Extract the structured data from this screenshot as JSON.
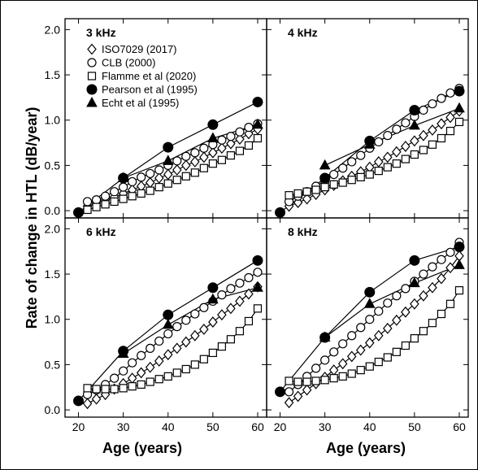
{
  "figure": {
    "ylabel": "Rate of change in HTL (dB/year)",
    "xlabel": "Age (years)"
  },
  "chart_data": [
    {
      "type": "line",
      "title": "3 kHz",
      "xlim": [
        17,
        62
      ],
      "ylim": [
        -0.08,
        2.12
      ],
      "xticks": [
        "20",
        "30",
        "40",
        "50",
        "60"
      ],
      "yticks": [
        "0.0",
        "0.5",
        "1.0",
        "1.5",
        "2.0"
      ],
      "legend": "top-left",
      "series": [
        {
          "name": "ISO7029 (2017)",
          "marker": "diamond",
          "x": [
            22,
            24,
            26,
            28,
            30,
            32,
            34,
            36,
            38,
            40,
            42,
            44,
            46,
            48,
            50,
            52,
            54,
            56,
            58,
            60
          ],
          "y": [
            0.05,
            0.08,
            0.12,
            0.15,
            0.19,
            0.23,
            0.27,
            0.31,
            0.36,
            0.4,
            0.45,
            0.5,
            0.54,
            0.59,
            0.64,
            0.69,
            0.74,
            0.79,
            0.85,
            0.9
          ]
        },
        {
          "name": "CLB (2000)",
          "marker": "circle",
          "x": [
            22,
            24,
            26,
            28,
            30,
            32,
            34,
            36,
            38,
            40,
            42,
            44,
            46,
            48,
            50,
            52,
            54,
            56,
            58,
            60
          ],
          "y": [
            0.1,
            0.12,
            0.16,
            0.21,
            0.26,
            0.32,
            0.37,
            0.41,
            0.45,
            0.5,
            0.55,
            0.6,
            0.64,
            0.69,
            0.73,
            0.78,
            0.82,
            0.87,
            0.92,
            0.96
          ]
        },
        {
          "name": "Flamme et al (2020)",
          "marker": "square",
          "x": [
            22,
            24,
            26,
            28,
            30,
            32,
            34,
            36,
            38,
            40,
            42,
            44,
            46,
            48,
            50,
            52,
            54,
            56,
            58,
            60
          ],
          "y": [
            0.01,
            0.04,
            0.07,
            0.1,
            0.13,
            0.16,
            0.19,
            0.22,
            0.26,
            0.3,
            0.34,
            0.38,
            0.42,
            0.47,
            0.52,
            0.56,
            0.61,
            0.66,
            0.72,
            0.8
          ]
        },
        {
          "name": "Pearson et al (1995)",
          "marker": "filled-circle",
          "x": [
            20,
            30,
            40,
            50,
            60
          ],
          "y": [
            -0.02,
            0.36,
            0.7,
            0.95,
            1.2
          ]
        },
        {
          "name": "Echt et al (1995)",
          "marker": "filled-triangle",
          "x": [
            30,
            40,
            50,
            60
          ],
          "y": [
            0.36,
            0.55,
            0.8,
            0.95
          ]
        }
      ]
    },
    {
      "type": "line",
      "title": "4 kHz",
      "xlim": [
        17,
        62
      ],
      "ylim": [
        -0.08,
        2.12
      ],
      "series": [
        {
          "name": "ISO7029 (2017)",
          "marker": "diamond",
          "x": [
            22,
            24,
            26,
            28,
            30,
            32,
            34,
            36,
            38,
            40,
            42,
            44,
            46,
            48,
            50,
            52,
            54,
            56,
            58,
            60
          ],
          "y": [
            0.05,
            0.09,
            0.13,
            0.18,
            0.23,
            0.28,
            0.33,
            0.38,
            0.43,
            0.48,
            0.54,
            0.59,
            0.65,
            0.71,
            0.77,
            0.83,
            0.89,
            0.96,
            1.03,
            1.1
          ]
        },
        {
          "name": "CLB (2000)",
          "marker": "circle",
          "x": [
            22,
            24,
            26,
            28,
            30,
            32,
            34,
            36,
            38,
            40,
            42,
            44,
            46,
            48,
            50,
            52,
            54,
            56,
            58,
            60
          ],
          "y": [
            0.1,
            0.16,
            0.21,
            0.27,
            0.33,
            0.4,
            0.47,
            0.54,
            0.61,
            0.69,
            0.76,
            0.83,
            0.9,
            0.97,
            1.04,
            1.11,
            1.18,
            1.24,
            1.3,
            1.35
          ]
        },
        {
          "name": "Flamme et al (2020)",
          "marker": "square",
          "x": [
            22,
            24,
            26,
            28,
            30,
            32,
            34,
            36,
            38,
            40,
            42,
            44,
            46,
            48,
            50,
            52,
            54,
            56,
            58,
            60
          ],
          "y": [
            0.17,
            0.19,
            0.21,
            0.23,
            0.26,
            0.29,
            0.31,
            0.34,
            0.37,
            0.4,
            0.44,
            0.48,
            0.52,
            0.57,
            0.62,
            0.67,
            0.73,
            0.8,
            0.88,
            0.98
          ]
        },
        {
          "name": "Pearson et al (1995)",
          "marker": "filled-circle",
          "x": [
            20,
            30,
            40,
            50,
            60
          ],
          "y": [
            -0.02,
            0.36,
            0.77,
            1.11,
            1.32
          ]
        },
        {
          "name": "Echt et al (1995)",
          "marker": "filled-triangle",
          "x": [
            30,
            40,
            50,
            60
          ],
          "y": [
            0.5,
            0.73,
            0.94,
            1.13
          ]
        }
      ]
    },
    {
      "type": "line",
      "title": "6 kHz",
      "xlim": [
        17,
        62
      ],
      "ylim": [
        -0.08,
        2.12
      ],
      "series": [
        {
          "name": "ISO7029 (2017)",
          "marker": "diamond",
          "x": [
            22,
            24,
            26,
            28,
            30,
            32,
            34,
            36,
            38,
            40,
            42,
            44,
            46,
            48,
            50,
            52,
            54,
            56,
            58,
            60
          ],
          "y": [
            0.07,
            0.12,
            0.17,
            0.23,
            0.29,
            0.35,
            0.41,
            0.47,
            0.54,
            0.61,
            0.68,
            0.75,
            0.82,
            0.89,
            0.97,
            1.05,
            1.12,
            1.2,
            1.28,
            1.36
          ]
        },
        {
          "name": "CLB (2000)",
          "marker": "circle",
          "x": [
            22,
            24,
            26,
            28,
            30,
            32,
            34,
            36,
            38,
            40,
            42,
            44,
            46,
            48,
            50,
            52,
            54,
            56,
            58,
            60
          ],
          "y": [
            0.17,
            0.22,
            0.28,
            0.35,
            0.43,
            0.52,
            0.6,
            0.68,
            0.76,
            0.84,
            0.92,
            0.99,
            1.06,
            1.13,
            1.2,
            1.27,
            1.34,
            1.4,
            1.46,
            1.52
          ]
        },
        {
          "name": "Flamme et al (2020)",
          "marker": "square",
          "x": [
            22,
            24,
            26,
            28,
            30,
            32,
            34,
            36,
            38,
            40,
            42,
            44,
            46,
            48,
            50,
            52,
            54,
            56,
            58,
            60
          ],
          "y": [
            0.24,
            0.23,
            0.23,
            0.23,
            0.24,
            0.26,
            0.28,
            0.31,
            0.34,
            0.37,
            0.41,
            0.45,
            0.5,
            0.56,
            0.63,
            0.7,
            0.78,
            0.87,
            0.98,
            1.12
          ]
        },
        {
          "name": "Pearson et al (1995)",
          "marker": "filled-circle",
          "x": [
            20,
            30,
            40,
            50,
            60
          ],
          "y": [
            0.1,
            0.65,
            1.05,
            1.35,
            1.65
          ]
        },
        {
          "name": "Echt et al (1995)",
          "marker": "filled-triangle",
          "x": [
            30,
            40,
            50,
            60
          ],
          "y": [
            0.62,
            0.94,
            1.22,
            1.35
          ]
        }
      ]
    },
    {
      "type": "line",
      "title": "8 kHz",
      "xlim": [
        17,
        62
      ],
      "ylim": [
        -0.08,
        2.12
      ],
      "series": [
        {
          "name": "ISO7029 (2017)",
          "marker": "diamond",
          "x": [
            22,
            24,
            26,
            28,
            30,
            32,
            34,
            36,
            38,
            40,
            42,
            44,
            46,
            48,
            50,
            52,
            54,
            56,
            58,
            60
          ],
          "y": [
            0.08,
            0.15,
            0.22,
            0.29,
            0.36,
            0.44,
            0.51,
            0.59,
            0.66,
            0.74,
            0.82,
            0.9,
            0.99,
            1.08,
            1.17,
            1.26,
            1.35,
            1.45,
            1.57,
            1.7
          ]
        },
        {
          "name": "CLB (2000)",
          "marker": "circle",
          "x": [
            22,
            24,
            26,
            28,
            30,
            32,
            34,
            36,
            38,
            40,
            42,
            44,
            46,
            48,
            50,
            52,
            54,
            56,
            58,
            60
          ],
          "y": [
            0.2,
            0.28,
            0.37,
            0.46,
            0.55,
            0.64,
            0.73,
            0.82,
            0.91,
            1.0,
            1.09,
            1.18,
            1.26,
            1.34,
            1.42,
            1.5,
            1.58,
            1.66,
            1.74,
            1.85
          ]
        },
        {
          "name": "Flamme et al (2020)",
          "marker": "square",
          "x": [
            22,
            24,
            26,
            28,
            30,
            32,
            34,
            36,
            38,
            40,
            42,
            44,
            46,
            48,
            50,
            52,
            54,
            56,
            58,
            60
          ],
          "y": [
            0.32,
            0.31,
            0.31,
            0.32,
            0.33,
            0.35,
            0.37,
            0.4,
            0.44,
            0.48,
            0.53,
            0.58,
            0.64,
            0.71,
            0.79,
            0.87,
            0.96,
            1.06,
            1.17,
            1.32
          ]
        },
        {
          "name": "Pearson et al (1995)",
          "marker": "filled-circle",
          "x": [
            20,
            30,
            40,
            50,
            60
          ],
          "y": [
            0.2,
            0.8,
            1.3,
            1.65,
            1.8
          ]
        },
        {
          "name": "Echt et al (1995)",
          "marker": "filled-triangle",
          "x": [
            30,
            40,
            50,
            60
          ],
          "y": [
            0.8,
            1.17,
            1.4,
            1.6
          ]
        }
      ]
    }
  ]
}
